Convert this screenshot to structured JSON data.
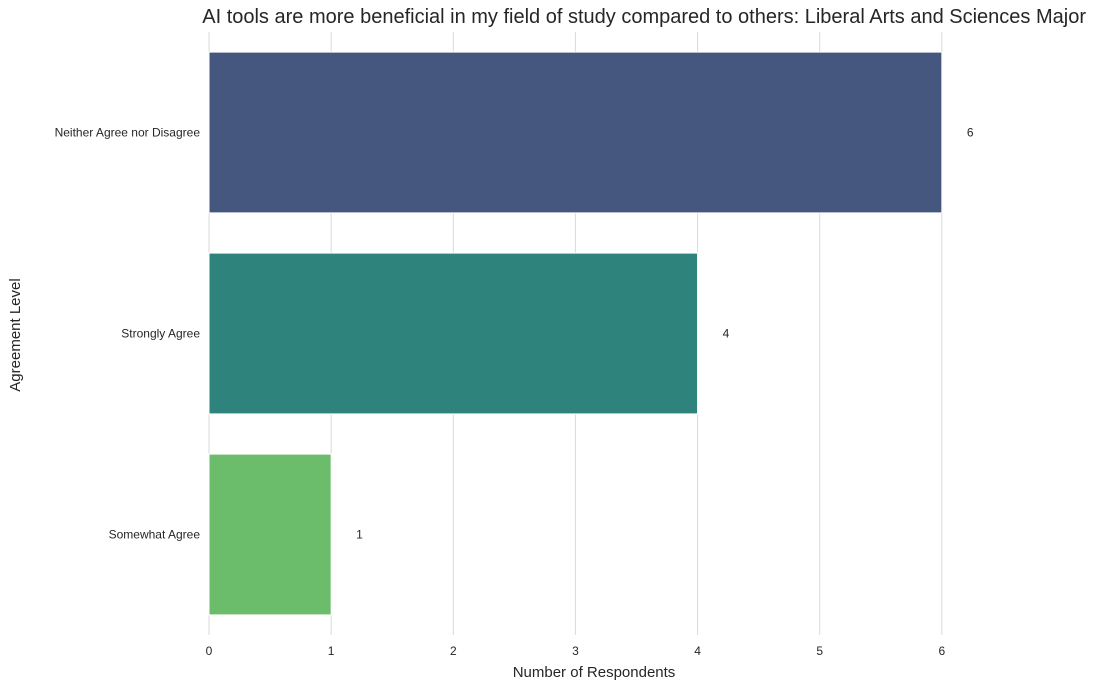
{
  "chart_data": {
    "type": "bar",
    "orientation": "horizontal",
    "title": "AI tools are more beneficial in my field of study compared to others: Liberal Arts and Sciences Major",
    "xlabel": "Number of Respondents",
    "ylabel": "Agreement Level",
    "categories": [
      "Neither Agree nor Disagree",
      "Strongly Agree",
      "Somewhat Agree"
    ],
    "values": [
      6,
      4,
      1
    ],
    "colors": [
      "#46577f",
      "#2e837d",
      "#6bbd6b"
    ],
    "xlim": [
      0,
      7
    ],
    "xticks": [
      "0",
      "1",
      "2",
      "3",
      "4",
      "5",
      "6"
    ],
    "grid": "vertical",
    "data_labels": [
      "6",
      "4",
      "1"
    ]
  }
}
